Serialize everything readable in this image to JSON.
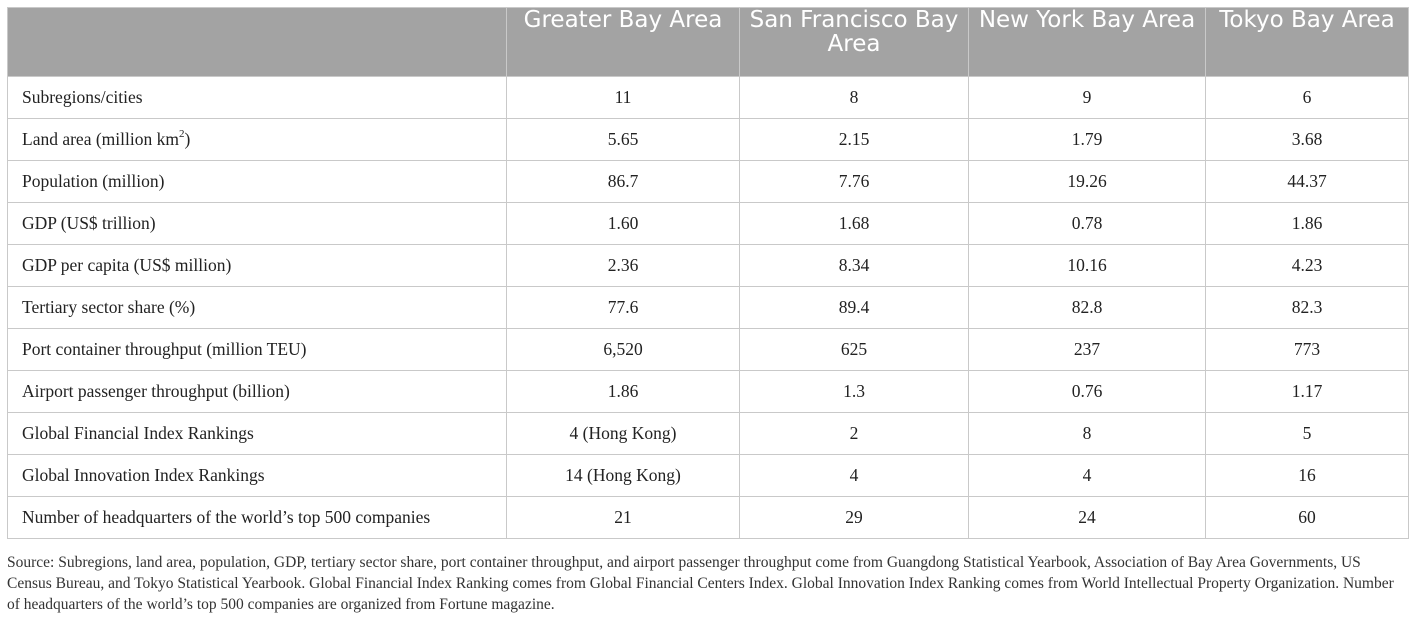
{
  "table": {
    "columns": [
      "",
      "Greater Bay Area",
      "San Francisco Bay Area",
      "New York Bay Area",
      "Tokyo Bay Area"
    ],
    "rows": [
      {
        "label": "Subregions/cities",
        "values": [
          "11",
          "8",
          "9",
          "6"
        ]
      },
      {
        "label": "Land area (million km",
        "label_sup": "2",
        "label_after": ")",
        "values": [
          "5.65",
          "2.15",
          "1.79",
          "3.68"
        ]
      },
      {
        "label": "Population (million)",
        "values": [
          "86.7",
          "7.76",
          "19.26",
          "44.37"
        ]
      },
      {
        "label": "GDP (US$ trillion)",
        "values": [
          "1.60",
          "1.68",
          "0.78",
          "1.86"
        ]
      },
      {
        "label": "GDP per capita (US$ million)",
        "values": [
          "2.36",
          "8.34",
          "10.16",
          "4.23"
        ]
      },
      {
        "label": "Tertiary sector share (%)",
        "values": [
          "77.6",
          "89.4",
          "82.8",
          "82.3"
        ]
      },
      {
        "label": "Port container throughput (million TEU)",
        "values": [
          "6,520",
          "625",
          "237",
          "773"
        ]
      },
      {
        "label": "Airport passenger throughput (billion)",
        "values": [
          "1.86",
          "1.3",
          "0.76",
          "1.17"
        ]
      },
      {
        "label": "Global Financial Index Rankings",
        "values": [
          "4 (Hong Kong)",
          "2",
          "8",
          "5"
        ]
      },
      {
        "label": "Global Innovation Index Rankings",
        "values": [
          "14 (Hong Kong)",
          "4",
          "4",
          "16"
        ]
      },
      {
        "label": "Number of headquarters of the world’s top 500 companies",
        "values": [
          "21",
          "29",
          "24",
          "60"
        ]
      }
    ]
  },
  "source_note": "Source: Subregions, land area, population, GDP, tertiary sector share, port container throughput, and airport passenger throughput come from Guangdong Statistical Yearbook, Association of Bay Area Governments, US Census Bureau, and Tokyo Statistical Yearbook. Global Financial Index Ranking comes from Global Financial Centers Index. Global Innovation Index Ranking comes from World Intellectual Property Organization. Number of headquarters of the world’s top 500 companies are organized from Fortune magazine.",
  "colors": {
    "header_bg": "#a3a3a3",
    "header_text": "#ffffff",
    "grid": "#c9c9c9",
    "body_text": "#222222"
  }
}
